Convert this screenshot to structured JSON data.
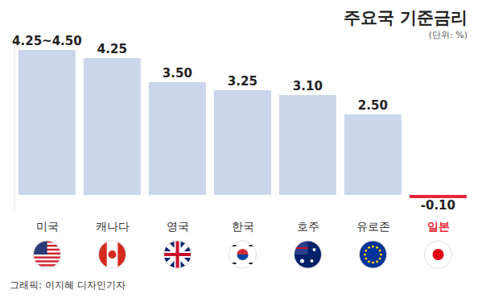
{
  "chart_data": {
    "type": "bar",
    "title": "주요국 기준금리",
    "subtitle": "(단위: %)",
    "source": "그래픽: 이지혜 디자인기자",
    "categories": [
      "미국",
      "캐나다",
      "영국",
      "한국",
      "호주",
      "유로존",
      "일본"
    ],
    "values": [
      4.5,
      4.25,
      3.5,
      3.25,
      3.1,
      2.5,
      -0.1
    ],
    "value_labels": [
      "4.25~4.50",
      "4.25",
      "3.50",
      "3.25",
      "3.10",
      "2.50",
      "-0.10"
    ],
    "colors": [
      "#cbd6ec",
      "#cbd6ec",
      "#cbd6ec",
      "#cbd6ec",
      "#cbd6ec",
      "#cbd6ec",
      "#e8283a"
    ],
    "ylim": [
      -0.5,
      4.8
    ],
    "grid": false,
    "data_labels": true,
    "tick_labels": "x"
  }
}
